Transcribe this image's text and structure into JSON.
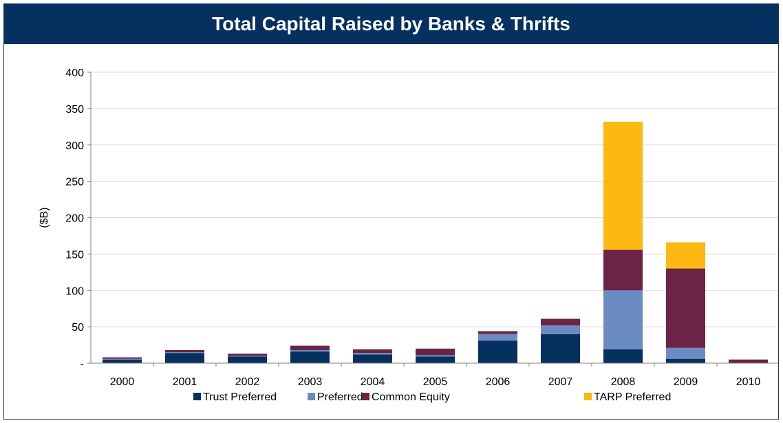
{
  "chart_data": {
    "type": "bar",
    "stacked": true,
    "title": "Total Capital Raised by Banks & Thrifts",
    "ylabel": "($B)",
    "xlabel": "",
    "ylim": [
      0,
      400
    ],
    "y_ticks": [
      "-",
      "50",
      "100",
      "150",
      "200",
      "250",
      "300",
      "350",
      "400"
    ],
    "categories": [
      "2000",
      "2001",
      "2002",
      "2003",
      "2004",
      "2005",
      "2006",
      "2007",
      "2008",
      "2009",
      "2010"
    ],
    "series": [
      {
        "name": "Trust Preferred",
        "color": "#05305f",
        "values": [
          5,
          14,
          9,
          16,
          12,
          9,
          31,
          40,
          19,
          6,
          0
        ]
      },
      {
        "name": "Preferred",
        "color": "#6a8cc3",
        "values": [
          1,
          1,
          1,
          2,
          2,
          2,
          9,
          12,
          81,
          15,
          0
        ]
      },
      {
        "name": "Common Equity",
        "color": "#6b2346",
        "values": [
          2,
          3,
          3,
          6,
          5,
          9,
          4,
          9,
          56,
          109,
          5
        ]
      },
      {
        "name": "TARP Preferred",
        "color": "#fdb813",
        "values": [
          0,
          0,
          0,
          0,
          0,
          0,
          0,
          0,
          176,
          36,
          0
        ]
      }
    ],
    "grid": true,
    "legend_position": "bottom"
  }
}
